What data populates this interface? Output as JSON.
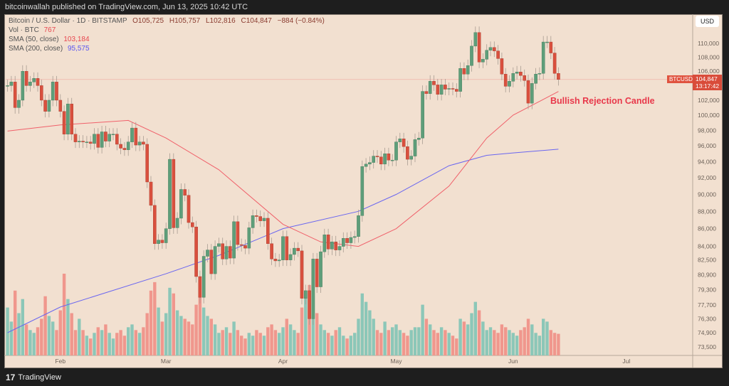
{
  "header": {
    "publisher": "bitcoinwallah published on TradingView.com, Jun 13, 2025 10:42 UTC"
  },
  "legend": {
    "symbol": "Bitcoin / U.S. Dollar · 1D · BITSTAMP",
    "open": "O105,725",
    "high": "H105,757",
    "low": "L102,816",
    "close": "C104,847",
    "change": "−884 (−0.84%)",
    "vol_label": "Vol · BTC",
    "vol_value": "767",
    "sma50_label": "SMA (50, close)",
    "sma50_value": "103,184",
    "sma200_label": "SMA (200, close)",
    "sma200_value": "95,575"
  },
  "currency": "USD",
  "last_price": {
    "symbol": "BTCUSD",
    "price": "104,847",
    "countdown": "13:17:42",
    "value": 104847
  },
  "annotation": "Bullish Rejection Candle",
  "footer": {
    "brand": "TradingView",
    "logo_text": "17"
  },
  "colors": {
    "up": "#5e9e7a",
    "down": "#d9503e",
    "vol_up": "#8cc7b8",
    "vol_down": "#f0978d",
    "sma50": "#f0606a",
    "sma200": "#6a66f0",
    "background": "#f2e0d0"
  },
  "chart_data": {
    "type": "candlestick",
    "scale": "log",
    "start_date": "2025-01-18",
    "interval": "1D",
    "y_ticks": [
      110000,
      108000,
      106000,
      102000,
      100000,
      98000,
      96000,
      94000,
      92000,
      90000,
      88000,
      86000,
      84000,
      82500,
      80900,
      79300,
      77700,
      76300,
      74900,
      73500
    ],
    "y_tick_labels": [
      "110,000",
      "108,000",
      "106,000",
      "102,000",
      "100,000",
      "98,000",
      "96,000",
      "94,000",
      "92,000",
      "90,000",
      "88,000",
      "86,000",
      "84,000",
      "82,500",
      "80,900",
      "79,300",
      "77,700",
      "76,300",
      "74,900",
      "73,500"
    ],
    "x_ticks": [
      {
        "label": "Feb",
        "day": 14
      },
      {
        "label": "Mar",
        "day": 42
      },
      {
        "label": "Apr",
        "day": 73
      },
      {
        "label": "May",
        "day": 103
      },
      {
        "label": "Jun",
        "day": 134
      },
      {
        "label": "Jul",
        "day": 164
      }
    ],
    "first_open": 104000,
    "closes": [
      104000,
      104500,
      101000,
      102000,
      106000,
      104000,
      104500,
      105000,
      104000,
      102000,
      100500,
      102000,
      104500,
      102000,
      100500,
      97500,
      101500,
      97500,
      96500,
      96600,
      96500,
      96500,
      96300,
      97500,
      95800,
      97800,
      96600,
      97500,
      97500,
      96200,
      95700,
      95500,
      96500,
      98300,
      96100,
      96500,
      96200,
      91500,
      88700,
      84300,
      84700,
      84400,
      86000,
      94300,
      86100,
      87200,
      90600,
      89900,
      86700,
      86200,
      80700,
      78500,
      82900,
      83600,
      81000,
      84000,
      84300,
      82600,
      84000,
      82700,
      86800,
      84200,
      84100,
      83800,
      86100,
      87500,
      87400,
      86900,
      87200,
      84300,
      82600,
      82400,
      82500,
      85100,
      82500,
      83100,
      83800,
      83500,
      78400,
      79200,
      76300,
      82600,
      79600,
      83400,
      85300,
      83700,
      84500,
      83600,
      84000,
      84900,
      84400,
      85000,
      85100,
      87500,
      93400,
      93700,
      93900,
      94700,
      94600,
      93700,
      95000,
      94200,
      94200,
      96500,
      96900,
      95900,
      94300,
      94700,
      96800,
      97000,
      103200,
      102900,
      104600,
      104100,
      102800,
      104100,
      103500,
      103600,
      103500,
      103200,
      106400,
      105600,
      106800,
      109600,
      111600,
      107300,
      107700,
      109000,
      109400,
      108900,
      107800,
      105600,
      103900,
      104600,
      105700,
      105900,
      105400,
      104700,
      101600,
      104300,
      105600,
      105700,
      110200,
      110200,
      108600,
      105700,
      104847
    ],
    "volumes": [
      1700,
      1200,
      2300,
      1500,
      2000,
      1100,
      900,
      800,
      1000,
      1300,
      2100,
      1400,
      1200,
      900,
      1600,
      2900,
      2000,
      1500,
      900,
      1300,
      900,
      700,
      600,
      800,
      1000,
      900,
      1100,
      800,
      600,
      800,
      900,
      700,
      1000,
      1100,
      900,
      800,
      1000,
      1500,
      2300,
      2600,
      1700,
      1200,
      1500,
      2400,
      2200,
      1600,
      1400,
      1300,
      1200,
      1100,
      1800,
      2100,
      1700,
      1400,
      1300,
      1100,
      800,
      900,
      1000,
      800,
      1200,
      900,
      700,
      600,
      800,
      700,
      900,
      800,
      700,
      1000,
      1100,
      900,
      800,
      1000,
      1300,
      1100,
      900,
      800,
      1700,
      2200,
      2500,
      2100,
      1500,
      1100,
      900,
      800,
      700,
      900,
      1000,
      700,
      600,
      700,
      800,
      1300,
      2200,
      1900,
      1600,
      1300,
      900,
      800,
      1200,
      900,
      1000,
      1100,
      900,
      800,
      700,
      900,
      1000,
      1000,
      1800,
      1300,
      1100,
      900,
      800,
      1000,
      900,
      800,
      700,
      600,
      1300,
      1200,
      1100,
      1500,
      1900,
      1600,
      1200,
      900,
      1000,
      900,
      800,
      1100,
      1000,
      900,
      800,
      700,
      900,
      1000,
      1300,
      1100,
      800,
      700,
      1300,
      1200,
      900,
      800,
      767
    ],
    "sma50": {
      "days": [
        0,
        14,
        32,
        42,
        56,
        73,
        83,
        93,
        103,
        117,
        127,
        134,
        146
      ],
      "values": [
        97900,
        98700,
        99300,
        97000,
        93000,
        86500,
        84500,
        84000,
        86000,
        91000,
        97000,
        100000,
        103184
      ]
    },
    "sma200": {
      "days": [
        0,
        14,
        42,
        56,
        73,
        93,
        103,
        117,
        127,
        134,
        146
      ],
      "values": [
        74900,
        77500,
        81000,
        83000,
        86000,
        88000,
        90000,
        93500,
        94800,
        95100,
        95575
      ]
    }
  }
}
